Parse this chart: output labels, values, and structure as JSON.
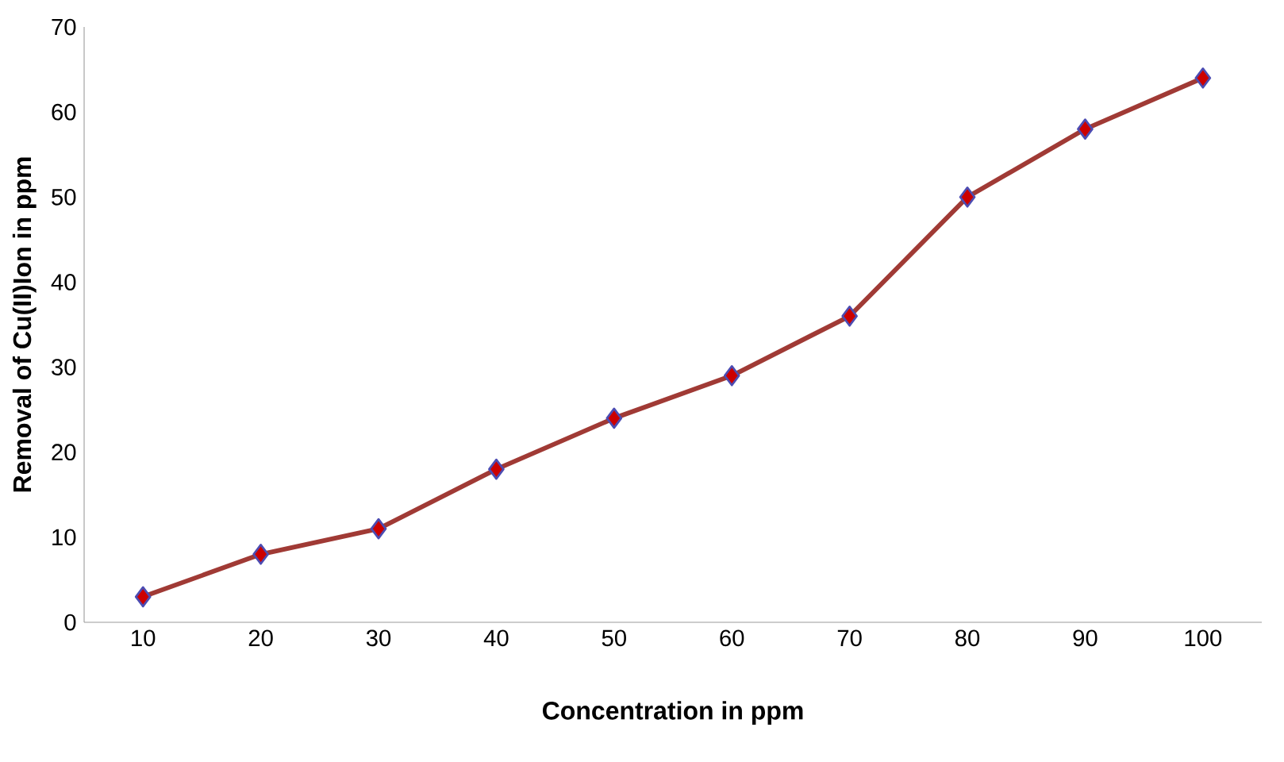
{
  "chart_data": {
    "type": "line",
    "xlabel": "Concentration in ppm",
    "ylabel": "Removal of Cu(II)Ion in ppm",
    "categories": [
      "10",
      "20",
      "30",
      "40",
      "50",
      "60",
      "70",
      "80",
      "90",
      "100"
    ],
    "series": [
      {
        "color": "#a03a35",
        "values": [
          3,
          8,
          11,
          18,
          24,
          29,
          36,
          50,
          58,
          64
        ]
      }
    ],
    "ylim": [
      0,
      70
    ],
    "yticks": [
      0,
      10,
      20,
      30,
      40,
      50,
      60,
      70
    ],
    "grid": false,
    "marker": "diamond",
    "line_style": "solid"
  }
}
